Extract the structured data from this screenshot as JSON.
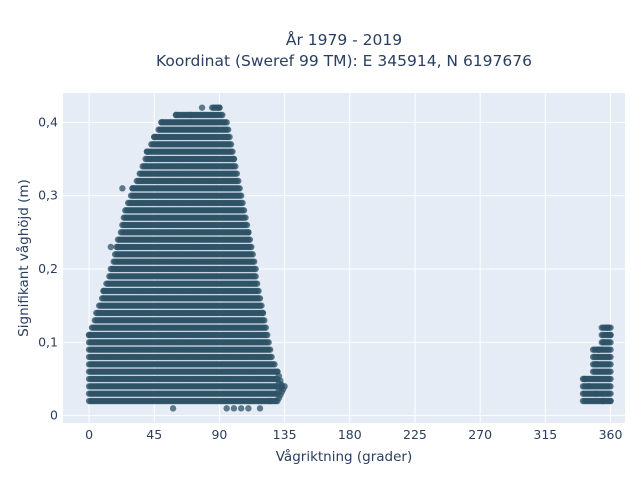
{
  "chart_data": {
    "type": "scatter",
    "title": "År 1979 - 2019",
    "subtitle": "Koordinat (Sweref 99 TM): E 345914, N 6197676",
    "xlabel": "Vågriktning (grader)",
    "ylabel": "Signifikant våghöjd (m)",
    "xlim": [
      -18,
      370
    ],
    "ylim": [
      -0.01,
      0.44
    ],
    "x_ticks": [
      0,
      45,
      90,
      135,
      180,
      225,
      270,
      315,
      360
    ],
    "x_tick_labels": [
      "0",
      "45",
      "90",
      "135",
      "180",
      "225",
      "270",
      "315",
      "360"
    ],
    "y_ticks": [
      0,
      0.1,
      0.2,
      0.3,
      0.4
    ],
    "y_tick_labels": [
      "0",
      "0,1",
      "0,2",
      "0,3",
      "0,4"
    ],
    "grid": true,
    "marker_color": "#2e5266",
    "background_color": "#e5ecf6",
    "envelope": {
      "description_x": [
        0,
        5,
        10,
        15,
        20,
        25,
        30,
        35,
        40,
        45,
        50,
        55,
        60,
        65,
        70,
        75,
        80,
        85,
        90,
        95,
        100,
        105,
        110,
        115,
        120,
        125,
        130,
        135
      ],
      "x": [
        0,
        5,
        10,
        15,
        20,
        25,
        30,
        35,
        40,
        45,
        50,
        55,
        60,
        65,
        70,
        75,
        80,
        85,
        90,
        95,
        100,
        105,
        110,
        115,
        120,
        125,
        130,
        135
      ],
      "y_min": [
        0.02,
        0.02,
        0.02,
        0.02,
        0.02,
        0.02,
        0.02,
        0.02,
        0.02,
        0.02,
        0.02,
        0.02,
        0.02,
        0.02,
        0.02,
        0.02,
        0.02,
        0.02,
        0.02,
        0.02,
        0.02,
        0.02,
        0.02,
        0.02,
        0.02,
        0.02,
        0.02,
        0.04
      ],
      "y_max": [
        0.11,
        0.14,
        0.17,
        0.2,
        0.24,
        0.28,
        0.31,
        0.33,
        0.36,
        0.38,
        0.4,
        0.4,
        0.41,
        0.41,
        0.41,
        0.41,
        0.41,
        0.42,
        0.42,
        0.4,
        0.35,
        0.3,
        0.25,
        0.2,
        0.14,
        0.09,
        0.06,
        0.04
      ]
    },
    "series": [
      {
        "values": [
          {
            "x": 0,
            "y": 0.11
          },
          {
            "x": 10,
            "y": 0.17
          },
          {
            "x": 20,
            "y": 0.23
          },
          {
            "x": 30,
            "y": 0.31
          },
          {
            "x": 40,
            "y": 0.36
          },
          {
            "x": 45,
            "y": 0.38
          },
          {
            "x": 50,
            "y": 0.4
          },
          {
            "x": 60,
            "y": 0.41
          },
          {
            "x": 70,
            "y": 0.41
          },
          {
            "x": 78,
            "y": 0.42
          },
          {
            "x": 90,
            "y": 0.42
          },
          {
            "x": 100,
            "y": 0.35
          },
          {
            "x": 110,
            "y": 0.25
          },
          {
            "x": 120,
            "y": 0.14
          },
          {
            "x": 130,
            "y": 0.06
          },
          {
            "x": 133,
            "y": 0.04
          },
          {
            "x": 58,
            "y": 0.01
          },
          {
            "x": 95,
            "y": 0.01
          },
          {
            "x": 100,
            "y": 0.01
          },
          {
            "x": 105,
            "y": 0.01
          },
          {
            "x": 110,
            "y": 0.01
          },
          {
            "x": 118,
            "y": 0.01
          },
          {
            "x": 125,
            "y": 0.02
          },
          {
            "x": 23,
            "y": 0.31
          },
          {
            "x": 15,
            "y": 0.23
          }
        ]
      },
      {
        "values": [
          {
            "x": 342,
            "y": 0.05
          },
          {
            "x": 345,
            "y": 0.04
          },
          {
            "x": 350,
            "y": 0.07
          },
          {
            "x": 352,
            "y": 0.09
          },
          {
            "x": 355,
            "y": 0.1
          },
          {
            "x": 358,
            "y": 0.12
          },
          {
            "x": 360,
            "y": 0.11
          },
          {
            "x": 350,
            "y": 0.03
          },
          {
            "x": 355,
            "y": 0.02
          },
          {
            "x": 360,
            "y": 0.02
          }
        ]
      }
    ]
  }
}
